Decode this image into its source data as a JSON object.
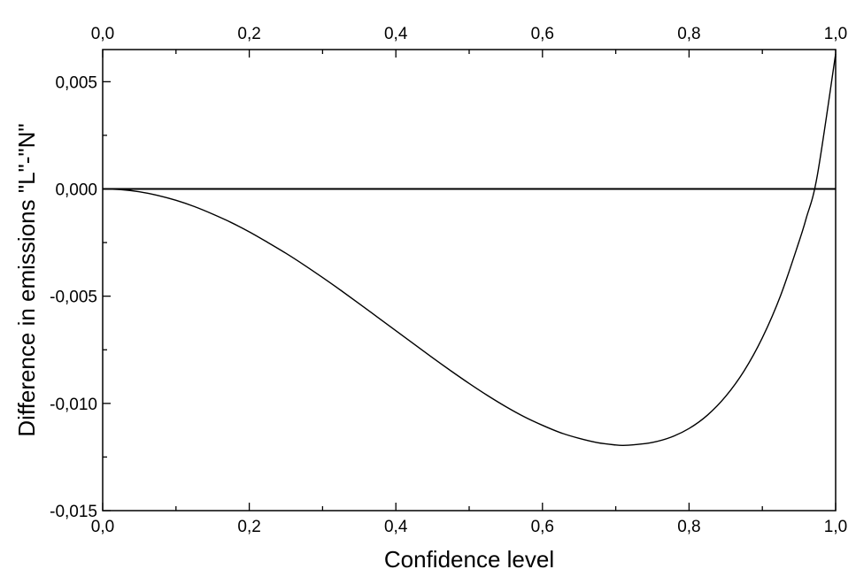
{
  "chart_data": {
    "type": "line",
    "title": "",
    "xlabel": "Confidence level",
    "ylabel": "Difference in emissions \"L\"-\"N\"",
    "xlim": [
      0.0,
      1.0
    ],
    "ylim": [
      -0.015,
      0.0065
    ],
    "x_ticks": [
      0.0,
      0.2,
      0.4,
      0.6,
      0.8,
      1.0
    ],
    "x_tick_labels": [
      "0,0",
      "0,2",
      "0,4",
      "0,6",
      "0,8",
      "1,0"
    ],
    "y_ticks": [
      -0.015,
      -0.01,
      -0.005,
      0.0,
      0.005
    ],
    "y_tick_labels": [
      "-0,015",
      "-0,010",
      "-0,005",
      "0,000",
      "0,005"
    ],
    "grid": false,
    "reference_line": {
      "y": 0.0
    },
    "series": [
      {
        "x": [
          0.0,
          0.025,
          0.05,
          0.075,
          0.1,
          0.125,
          0.15,
          0.175,
          0.2,
          0.225,
          0.25,
          0.275,
          0.3,
          0.325,
          0.35,
          0.375,
          0.4,
          0.425,
          0.45,
          0.475,
          0.5,
          0.525,
          0.55,
          0.575,
          0.6,
          0.625,
          0.65,
          0.675,
          0.7,
          0.71,
          0.725,
          0.75,
          0.775,
          0.8,
          0.825,
          0.85,
          0.875,
          0.9,
          0.925,
          0.95,
          0.96,
          0.975,
          1.0
        ],
        "y": [
          0.0,
          -3e-05,
          -0.00013,
          -0.0003,
          -0.00053,
          -0.00082,
          -0.00117,
          -0.00156,
          -0.002,
          -0.00249,
          -0.003,
          -0.00355,
          -0.00413,
          -0.00473,
          -0.00535,
          -0.00598,
          -0.00661,
          -0.00724,
          -0.00787,
          -0.00848,
          -0.00907,
          -0.00963,
          -0.01015,
          -0.01062,
          -0.01102,
          -0.01137,
          -0.01163,
          -0.01183,
          -0.01194,
          -0.01196,
          -0.01193,
          -0.01182,
          -0.01158,
          -0.01117,
          -0.01055,
          -0.00967,
          -0.00849,
          -0.00694,
          -0.00496,
          -0.00246,
          -0.00135,
          0.00063,
          0.0063
        ]
      }
    ]
  }
}
